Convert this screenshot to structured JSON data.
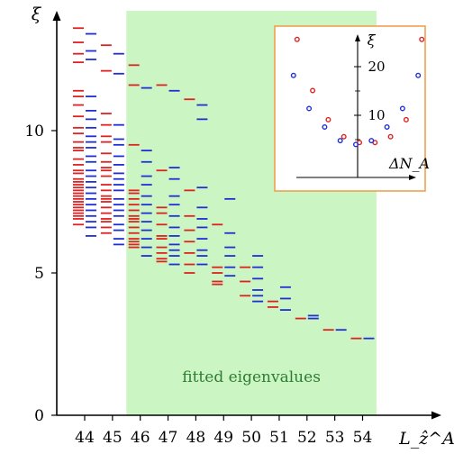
{
  "chart_data": [
    {
      "type": "scatter",
      "marker": "horizontal-dash",
      "xlabel": "L_ẑ^A",
      "ylabel": "ξ",
      "x_ticks": [
        44,
        45,
        46,
        47,
        48,
        49,
        50,
        51,
        52,
        53,
        54
      ],
      "y_ticks": [
        0,
        5,
        10
      ],
      "xlim": [
        43.0,
        55.5
      ],
      "ylim": [
        0,
        14
      ],
      "highlight_region": {
        "x_from": 45.5,
        "x_to": 54.5,
        "label": "fitted eigenvalues",
        "color": "#ccf5c4"
      },
      "colors": {
        "red": "#dd2222",
        "blue": "#1f2fd6"
      },
      "series": [
        {
          "color": "red",
          "points": [
            [
              44,
              13.6
            ],
            [
              44,
              13.1
            ],
            [
              44,
              12.7
            ],
            [
              44,
              12.4
            ],
            [
              44,
              11.4
            ],
            [
              44,
              11.2
            ],
            [
              44,
              10.9
            ],
            [
              44,
              10.5
            ],
            [
              44,
              10.1
            ],
            [
              44,
              9.9
            ],
            [
              44,
              9.6
            ],
            [
              44,
              9.4
            ],
            [
              44,
              9.3
            ],
            [
              44,
              9.0
            ],
            [
              44,
              8.8
            ],
            [
              44,
              8.6
            ],
            [
              44,
              8.5
            ],
            [
              44,
              8.3
            ],
            [
              44,
              8.2
            ],
            [
              44,
              8.1
            ],
            [
              44,
              8.0
            ],
            [
              44,
              7.9
            ],
            [
              44,
              7.8
            ],
            [
              44,
              7.7
            ],
            [
              44,
              7.6
            ],
            [
              44,
              7.5
            ],
            [
              44,
              7.4
            ],
            [
              44,
              7.3
            ],
            [
              44,
              7.2
            ],
            [
              44,
              7.1
            ],
            [
              44,
              7.0
            ],
            [
              44,
              6.9
            ],
            [
              44,
              6.7
            ],
            [
              45,
              13.0
            ],
            [
              45,
              12.1
            ],
            [
              45,
              10.6
            ],
            [
              45,
              10.2
            ],
            [
              45,
              9.8
            ],
            [
              45,
              9.6
            ],
            [
              45,
              9.2
            ],
            [
              45,
              8.9
            ],
            [
              45,
              8.7
            ],
            [
              45,
              8.6
            ],
            [
              45,
              8.4
            ],
            [
              45,
              8.1
            ],
            [
              45,
              7.9
            ],
            [
              45,
              7.7
            ],
            [
              45,
              7.6
            ],
            [
              45,
              7.5
            ],
            [
              45,
              7.3
            ],
            [
              45,
              7.1
            ],
            [
              45,
              6.9
            ],
            [
              45,
              6.8
            ],
            [
              45,
              6.6
            ],
            [
              45,
              6.4
            ],
            [
              46,
              12.3
            ],
            [
              46,
              11.6
            ],
            [
              46,
              9.5
            ],
            [
              46,
              7.9
            ],
            [
              46,
              7.8
            ],
            [
              46,
              7.6
            ],
            [
              46,
              7.4
            ],
            [
              46,
              7.2
            ],
            [
              46,
              7.0
            ],
            [
              46,
              6.9
            ],
            [
              46,
              6.8
            ],
            [
              46,
              6.6
            ],
            [
              46,
              6.4
            ],
            [
              46,
              6.2
            ],
            [
              46,
              6.1
            ],
            [
              46,
              6.0
            ],
            [
              46,
              5.9
            ],
            [
              47,
              11.6
            ],
            [
              47,
              8.6
            ],
            [
              47,
              7.3
            ],
            [
              47,
              7.1
            ],
            [
              47,
              6.7
            ],
            [
              47,
              6.3
            ],
            [
              47,
              6.2
            ],
            [
              47,
              5.9
            ],
            [
              47,
              5.7
            ],
            [
              47,
              5.5
            ],
            [
              47,
              5.4
            ],
            [
              48,
              11.1
            ],
            [
              48,
              7.9
            ],
            [
              48,
              7.0
            ],
            [
              48,
              6.5
            ],
            [
              48,
              6.1
            ],
            [
              48,
              5.7
            ],
            [
              48,
              5.3
            ],
            [
              48,
              5.0
            ],
            [
              49,
              6.7
            ],
            [
              49,
              5.2
            ],
            [
              49,
              5.0
            ],
            [
              49,
              4.7
            ],
            [
              49,
              4.6
            ],
            [
              50,
              5.2
            ],
            [
              50,
              4.7
            ],
            [
              50,
              4.2
            ],
            [
              51,
              4.0
            ],
            [
              51,
              3.8
            ],
            [
              52,
              3.4
            ],
            [
              53,
              3.0
            ],
            [
              54,
              2.7
            ]
          ]
        },
        {
          "color": "blue",
          "points": [
            [
              44,
              13.4
            ],
            [
              44,
              12.8
            ],
            [
              44,
              12.5
            ],
            [
              44,
              11.2
            ],
            [
              44,
              10.7
            ],
            [
              44,
              10.4
            ],
            [
              44,
              10.1
            ],
            [
              44,
              9.8
            ],
            [
              44,
              9.6
            ],
            [
              44,
              9.4
            ],
            [
              44,
              9.1
            ],
            [
              44,
              8.9
            ],
            [
              44,
              8.6
            ],
            [
              44,
              8.4
            ],
            [
              44,
              8.2
            ],
            [
              44,
              8.0
            ],
            [
              44,
              7.8
            ],
            [
              44,
              7.6
            ],
            [
              44,
              7.4
            ],
            [
              44,
              7.2
            ],
            [
              44,
              7.0
            ],
            [
              44,
              6.8
            ],
            [
              44,
              6.6
            ],
            [
              44,
              6.3
            ],
            [
              45,
              12.7
            ],
            [
              45,
              12.0
            ],
            [
              45,
              10.2
            ],
            [
              45,
              9.7
            ],
            [
              45,
              9.5
            ],
            [
              45,
              9.1
            ],
            [
              45,
              8.8
            ],
            [
              45,
              8.5
            ],
            [
              45,
              8.3
            ],
            [
              45,
              8.1
            ],
            [
              45,
              7.9
            ],
            [
              45,
              7.6
            ],
            [
              45,
              7.4
            ],
            [
              45,
              7.2
            ],
            [
              45,
              7.0
            ],
            [
              45,
              6.7
            ],
            [
              45,
              6.5
            ],
            [
              45,
              6.2
            ],
            [
              45,
              6.0
            ],
            [
              46,
              11.5
            ],
            [
              46,
              9.3
            ],
            [
              46,
              8.9
            ],
            [
              46,
              8.4
            ],
            [
              46,
              8.1
            ],
            [
              46,
              7.7
            ],
            [
              46,
              7.4
            ],
            [
              46,
              7.1
            ],
            [
              46,
              6.8
            ],
            [
              46,
              6.5
            ],
            [
              46,
              6.2
            ],
            [
              46,
              5.9
            ],
            [
              46,
              5.6
            ],
            [
              47,
              11.4
            ],
            [
              47,
              8.7
            ],
            [
              47,
              8.3
            ],
            [
              47,
              7.7
            ],
            [
              47,
              7.4
            ],
            [
              47,
              7.0
            ],
            [
              47,
              6.6
            ],
            [
              47,
              6.3
            ],
            [
              47,
              6.0
            ],
            [
              47,
              5.8
            ],
            [
              47,
              5.6
            ],
            [
              47,
              5.3
            ],
            [
              48,
              10.9
            ],
            [
              48,
              10.4
            ],
            [
              48,
              8.0
            ],
            [
              48,
              7.3
            ],
            [
              48,
              6.9
            ],
            [
              48,
              6.6
            ],
            [
              48,
              6.2
            ],
            [
              48,
              5.8
            ],
            [
              48,
              5.6
            ],
            [
              48,
              5.3
            ],
            [
              49,
              7.6
            ],
            [
              49,
              6.4
            ],
            [
              49,
              5.9
            ],
            [
              49,
              5.6
            ],
            [
              49,
              5.2
            ],
            [
              49,
              4.9
            ],
            [
              50,
              5.6
            ],
            [
              50,
              5.2
            ],
            [
              50,
              4.8
            ],
            [
              50,
              4.4
            ],
            [
              50,
              4.2
            ],
            [
              50,
              4.0
            ],
            [
              51,
              4.5
            ],
            [
              51,
              4.1
            ],
            [
              51,
              3.7
            ],
            [
              52,
              3.5
            ],
            [
              52,
              3.4
            ],
            [
              53,
              3.0
            ],
            [
              54,
              2.7
            ]
          ]
        }
      ]
    },
    {
      "type": "scatter",
      "marker": "circle",
      "xlabel": "ΔN_A",
      "ylabel": "ξ",
      "y_ticks": [
        10,
        20
      ],
      "xlim": [
        -5,
        5
      ],
      "ylim": [
        -1,
        27
      ],
      "series": [
        {
          "color": "red",
          "x": [
            -4,
            -3,
            -2,
            -1,
            0,
            1,
            2,
            3,
            4
          ],
          "y": [
            25.6,
            15.1,
            9.1,
            5.6,
            4.4,
            4.4,
            5.6,
            9.1,
            25.6
          ]
        },
        {
          "color": "blue",
          "x": [
            -4,
            -3,
            -2,
            -1,
            0,
            1,
            2,
            3,
            4
          ],
          "y": [
            18.2,
            11.4,
            7.6,
            4.8,
            4.0,
            4.8,
            7.6,
            11.4,
            18.2
          ]
        }
      ]
    }
  ]
}
